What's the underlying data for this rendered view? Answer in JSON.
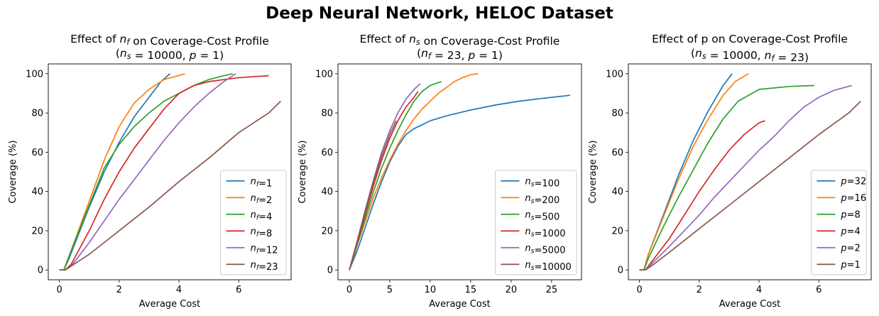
{
  "suptitle": "Deep Neural Network, HELOC Dataset",
  "colors": [
    "#1f77b4",
    "#ff7f0e",
    "#2ca02c",
    "#d62728",
    "#9467bd",
    "#8c564b"
  ],
  "chart_data": [
    {
      "type": "line",
      "title_line1": "Effect of n_f on Coverage-Cost Profile",
      "title_line2": "(n_s = 10000, p = 1)",
      "xlabel": "Average Cost",
      "ylabel": "Coverage (%)",
      "xlim": [
        -0.37,
        7.75
      ],
      "ylim": [
        -5,
        105
      ],
      "xticks": [
        0,
        2,
        4,
        6
      ],
      "yticks": [
        0,
        20,
        40,
        60,
        80,
        100
      ],
      "legend_loc": "lower right",
      "series": [
        {
          "name": "n_f=1",
          "points": [
            [
              0,
              0
            ],
            [
              0.15,
              0
            ],
            [
              0.3,
              5
            ],
            [
              1,
              32
            ],
            [
              1.5,
              50
            ],
            [
              2,
              65
            ],
            [
              2.5,
              78
            ],
            [
              3,
              88
            ],
            [
              3.4,
              96
            ],
            [
              3.7,
              100
            ]
          ]
        },
        {
          "name": "n_f=2",
          "points": [
            [
              0,
              0
            ],
            [
              0.15,
              0
            ],
            [
              0.3,
              6
            ],
            [
              1,
              35
            ],
            [
              1.5,
              56
            ],
            [
              2,
              73
            ],
            [
              2.5,
              85
            ],
            [
              3,
              92
            ],
            [
              3.5,
              97
            ],
            [
              4.2,
              100
            ]
          ]
        },
        {
          "name": "n_f=4",
          "points": [
            [
              0,
              0
            ],
            [
              0.15,
              0
            ],
            [
              0.3,
              6
            ],
            [
              1,
              33
            ],
            [
              1.5,
              52
            ],
            [
              2,
              64
            ],
            [
              2.5,
              73
            ],
            [
              3,
              80
            ],
            [
              3.5,
              86
            ],
            [
              4,
              90
            ],
            [
              4.5,
              94
            ],
            [
              5,
              97
            ],
            [
              5.5,
              99
            ],
            [
              5.8,
              100
            ]
          ]
        },
        {
          "name": "n_f=8",
          "points": [
            [
              0,
              0
            ],
            [
              0.2,
              0
            ],
            [
              0.4,
              3
            ],
            [
              1,
              20
            ],
            [
              1.5,
              36
            ],
            [
              2,
              50
            ],
            [
              2.5,
              62
            ],
            [
              3,
              72
            ],
            [
              3.5,
              82
            ],
            [
              4,
              90
            ],
            [
              4.5,
              94
            ],
            [
              5,
              96
            ],
            [
              6,
              98
            ],
            [
              7,
              99
            ]
          ]
        },
        {
          "name": "n_f=12",
          "points": [
            [
              0,
              0
            ],
            [
              0.2,
              0
            ],
            [
              0.4,
              2
            ],
            [
              1,
              14
            ],
            [
              1.5,
              25
            ],
            [
              2,
              36
            ],
            [
              2.5,
              46
            ],
            [
              3,
              56
            ],
            [
              3.5,
              66
            ],
            [
              4,
              75
            ],
            [
              4.5,
              83
            ],
            [
              5,
              90
            ],
            [
              5.5,
              96
            ],
            [
              5.9,
              100
            ]
          ]
        },
        {
          "name": "n_f=23",
          "points": [
            [
              0,
              0
            ],
            [
              0.2,
              0
            ],
            [
              0.4,
              2
            ],
            [
              1,
              8
            ],
            [
              1.5,
              14
            ],
            [
              2,
              20
            ],
            [
              3,
              32
            ],
            [
              4,
              45
            ],
            [
              5,
              57
            ],
            [
              6,
              70
            ],
            [
              7,
              80
            ],
            [
              7.4,
              86
            ]
          ]
        }
      ]
    },
    {
      "type": "line",
      "title_line1": "Effect of n_s on Coverage-Cost Profile",
      "title_line2": "(n_f = 23, p = 1)",
      "xlabel": "Average Cost",
      "ylabel": "Coverage (%)",
      "xlim": [
        -1.4,
        28.7
      ],
      "ylim": [
        -5,
        105
      ],
      "xticks": [
        0,
        5,
        10,
        15,
        20,
        25
      ],
      "yticks": [
        0,
        20,
        40,
        60,
        80,
        100
      ],
      "legend_loc": "lower right",
      "series": [
        {
          "name": "n_s=100",
          "points": [
            [
              0,
              0
            ],
            [
              1,
              10
            ],
            [
              2,
              22
            ],
            [
              3,
              34
            ],
            [
              4,
              45
            ],
            [
              5,
              55
            ],
            [
              6,
              63
            ],
            [
              7,
              69
            ],
            [
              8,
              72
            ],
            [
              10,
              76
            ],
            [
              12,
              78.5
            ],
            [
              15,
              81.5
            ],
            [
              18,
              84
            ],
            [
              21,
              86
            ],
            [
              24,
              87.5
            ],
            [
              27.3,
              89
            ]
          ]
        },
        {
          "name": "n_s=200",
          "points": [
            [
              0,
              0
            ],
            [
              1,
              13
            ],
            [
              2,
              25
            ],
            [
              3,
              37
            ],
            [
              4,
              47
            ],
            [
              5,
              56
            ],
            [
              6,
              64
            ],
            [
              7,
              71
            ],
            [
              8,
              77
            ],
            [
              9,
              82
            ],
            [
              10,
              86
            ],
            [
              11,
              90
            ],
            [
              12,
              93
            ],
            [
              13,
              96
            ],
            [
              14,
              98
            ],
            [
              15,
              99.5
            ],
            [
              15.9,
              100
            ]
          ]
        },
        {
          "name": "n_s=500",
          "points": [
            [
              0,
              0
            ],
            [
              1,
              13
            ],
            [
              2,
              27
            ],
            [
              3,
              40
            ],
            [
              4,
              52
            ],
            [
              5,
              62
            ],
            [
              6,
              71
            ],
            [
              7,
              79
            ],
            [
              8,
              86
            ],
            [
              9,
              91
            ],
            [
              10,
              94
            ],
            [
              11,
              95.5
            ],
            [
              11.4,
              96
            ]
          ]
        },
        {
          "name": "n_s=1000",
          "points": [
            [
              0,
              0
            ],
            [
              1,
              14
            ],
            [
              2,
              29
            ],
            [
              3,
              43
            ],
            [
              4,
              56
            ],
            [
              5,
              67
            ],
            [
              6,
              76
            ],
            [
              7,
              83
            ],
            [
              8,
              88
            ],
            [
              8.5,
              91
            ]
          ]
        },
        {
          "name": "n_s=5000",
          "points": [
            [
              0,
              0
            ],
            [
              1,
              15
            ],
            [
              2,
              31
            ],
            [
              3,
              46
            ],
            [
              4,
              60
            ],
            [
              5,
              71
            ],
            [
              6,
              80
            ],
            [
              7,
              87
            ],
            [
              8,
              92
            ],
            [
              8.8,
              95
            ]
          ]
        },
        {
          "name": "n_s=10000",
          "points": [
            [
              0,
              0
            ],
            [
              1,
              15
            ],
            [
              2,
              30
            ],
            [
              3,
              45
            ],
            [
              4,
              58
            ],
            [
              5,
              69
            ],
            [
              5.8,
              76
            ]
          ]
        }
      ]
    },
    {
      "type": "line",
      "title_line1": "Effect of p on Coverage-Cost Profile",
      "title_line2": "(n_s = 10000, n_f = 23)",
      "xlabel": "Average Cost",
      "ylabel": "Coverage (%)",
      "xlim": [
        -0.37,
        7.75
      ],
      "ylim": [
        -5,
        105
      ],
      "xticks": [
        0,
        2,
        4,
        6
      ],
      "yticks": [
        0,
        20,
        40,
        60,
        80,
        100
      ],
      "legend_loc": "lower right",
      "series": [
        {
          "name": "p=32",
          "points": [
            [
              0,
              0
            ],
            [
              0.15,
              0
            ],
            [
              0.3,
              8
            ],
            [
              0.8,
              28
            ],
            [
              1.3,
              48
            ],
            [
              1.8,
              66
            ],
            [
              2.3,
              81
            ],
            [
              2.8,
              94
            ],
            [
              3.1,
              100
            ]
          ]
        },
        {
          "name": "p=16",
          "points": [
            [
              0,
              0
            ],
            [
              0.15,
              0
            ],
            [
              0.3,
              8
            ],
            [
              0.8,
              27
            ],
            [
              1.3,
              46
            ],
            [
              1.8,
              63
            ],
            [
              2.3,
              77
            ],
            [
              2.8,
              89
            ],
            [
              3.2,
              96
            ],
            [
              3.65,
              100
            ]
          ]
        },
        {
          "name": "p=8",
          "points": [
            [
              0,
              0
            ],
            [
              0.15,
              0
            ],
            [
              0.3,
              6
            ],
            [
              0.8,
              22
            ],
            [
              1.3,
              37
            ],
            [
              1.8,
              51
            ],
            [
              2.3,
              65
            ],
            [
              2.8,
              77
            ],
            [
              3.3,
              86
            ],
            [
              4,
              92
            ],
            [
              5,
              93.5
            ],
            [
              5.85,
              94
            ]
          ]
        },
        {
          "name": "p=4",
          "points": [
            [
              0,
              0
            ],
            [
              0.2,
              0
            ],
            [
              0.4,
              4
            ],
            [
              1,
              16
            ],
            [
              1.5,
              28
            ],
            [
              2,
              40
            ],
            [
              2.5,
              51
            ],
            [
              3,
              61
            ],
            [
              3.5,
              69
            ],
            [
              4,
              75
            ],
            [
              4.2,
              76
            ]
          ]
        },
        {
          "name": "p=2",
          "points": [
            [
              0,
              0
            ],
            [
              0.2,
              0
            ],
            [
              0.4,
              3
            ],
            [
              1,
              12
            ],
            [
              1.5,
              20
            ],
            [
              2,
              28
            ],
            [
              2.5,
              37
            ],
            [
              3,
              45
            ],
            [
              3.5,
              53
            ],
            [
              4,
              61
            ],
            [
              4.5,
              68
            ],
            [
              5,
              76
            ],
            [
              5.5,
              83
            ],
            [
              6,
              88
            ],
            [
              6.5,
              91.5
            ],
            [
              7.1,
              94
            ]
          ]
        },
        {
          "name": "p=1",
          "points": [
            [
              0,
              0
            ],
            [
              0.2,
              0
            ],
            [
              0.4,
              2
            ],
            [
              1,
              9
            ],
            [
              1.5,
              15
            ],
            [
              2,
              21
            ],
            [
              3,
              33
            ],
            [
              4,
              45
            ],
            [
              5,
              57
            ],
            [
              6,
              69
            ],
            [
              7,
              80
            ],
            [
              7.4,
              86
            ]
          ]
        }
      ]
    }
  ]
}
